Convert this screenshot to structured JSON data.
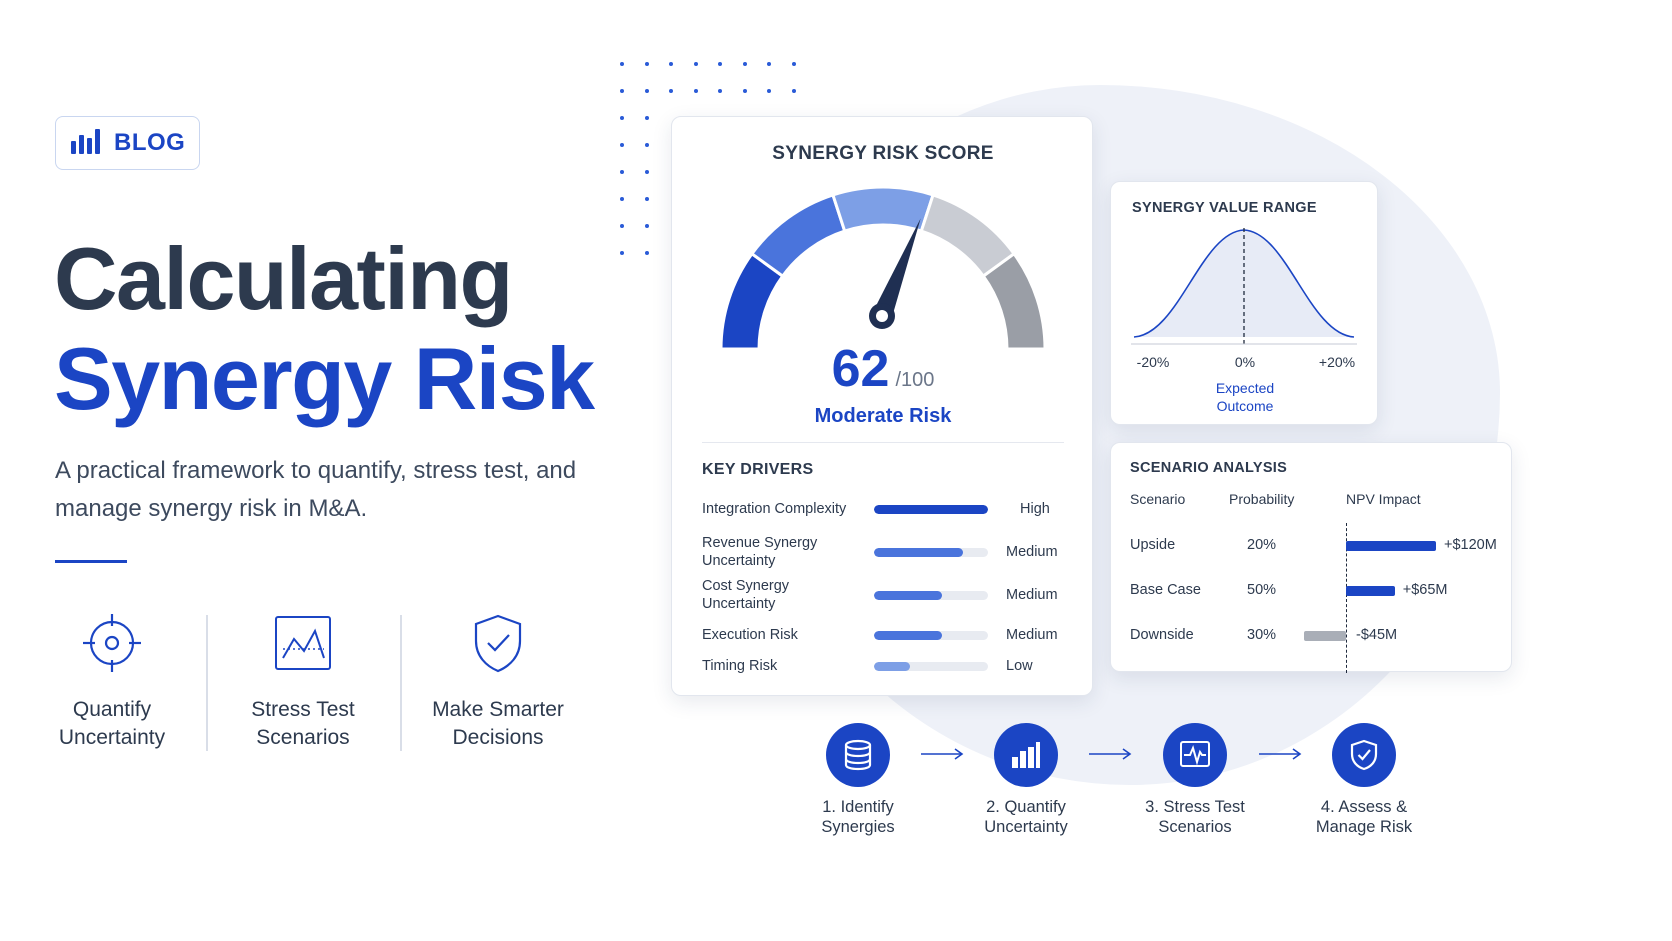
{
  "badge": {
    "label": "BLOG",
    "icon": "bar-chart-icon"
  },
  "hero": {
    "title_line1": "Calculating",
    "title_line2": "Synergy Risk",
    "subtitle": "A practical framework to quantify, stress test, and manage synergy risk in M&A."
  },
  "features": [
    {
      "icon": "target-icon",
      "label": "Quantify\nUncertainty"
    },
    {
      "icon": "line-chart-icon",
      "label": "Stress Test\nScenarios"
    },
    {
      "icon": "shield-check-icon",
      "label": "Make Smarter\nDecisions"
    }
  ],
  "risk_card": {
    "title": "SYNERGY RISK SCORE",
    "score": "62",
    "score_max": "/100",
    "score_value": 62,
    "score_label": "Moderate Risk",
    "key_drivers_title": "KEY DRIVERS",
    "drivers": [
      {
        "name": "Integration Complexity",
        "level": "High",
        "fill": 1.0
      },
      {
        "name": "Revenue Synergy Uncertainty",
        "level": "Medium",
        "fill": 0.78
      },
      {
        "name": "Cost Synergy Uncertainty",
        "level": "Medium",
        "fill": 0.6
      },
      {
        "name": "Execution Risk",
        "level": "Medium",
        "fill": 0.6
      },
      {
        "name": "Timing Risk",
        "level": "Low",
        "fill": 0.32
      }
    ]
  },
  "range_card": {
    "title": "SYNERGY VALUE RANGE",
    "ticks": [
      "-20%",
      "0%",
      "+20%"
    ],
    "expected_label": "Expected\nOutcome"
  },
  "scenario_card": {
    "title": "SCENARIO ANALYSIS",
    "headers": [
      "Scenario",
      "Probability",
      "NPV Impact"
    ],
    "rows": [
      {
        "name": "Upside",
        "probability": "20%",
        "npv": "+$120M",
        "npv_value": 120
      },
      {
        "name": "Base Case",
        "probability": "50%",
        "npv": "+$65M",
        "npv_value": 65
      },
      {
        "name": "Downside",
        "probability": "30%",
        "npv": "-$45M",
        "npv_value": -45
      }
    ]
  },
  "steps": [
    {
      "icon": "database-icon",
      "label": "1. Identify\nSynergies"
    },
    {
      "icon": "bar-chart-icon",
      "label": "2. Quantify\nUncertainty"
    },
    {
      "icon": "pulse-monitor-icon",
      "label": "3. Stress Test\nScenarios"
    },
    {
      "icon": "shield-check-icon",
      "label": "4. Assess &\nManage Risk"
    }
  ],
  "colors": {
    "brand_blue": "#1b45c4",
    "dark_text": "#2d3a4e",
    "gauge_segments": [
      "#1b45c4",
      "#4a74dc",
      "#7d9fe6",
      "#c9ccd3",
      "#9a9ea6"
    ]
  }
}
